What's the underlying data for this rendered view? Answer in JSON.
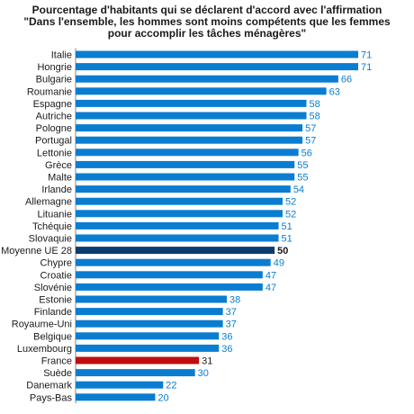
{
  "title_lines": [
    "Pourcentage d'habitants qui se déclarent d'accord avec l'affirmation",
    "\"Dans l'ensemble, les hommes sont moins compétents que les femmes",
    "pour accomplir les tâches ménagères\""
  ],
  "colors": {
    "default": "#0a7dd1",
    "eu_average": "#0d3c6e",
    "france": "#c00d0d",
    "value_default": "#0a7dd1",
    "value_highlight": "#1a1a1a"
  },
  "chart_data": {
    "type": "bar",
    "orientation": "horizontal",
    "title": "Pourcentage d'habitants qui se déclarent d'accord avec l'affirmation \"Dans l'ensemble, les hommes sont moins compétents que les femmes pour accomplir les tâches ménagères\"",
    "categories": [
      "Italie",
      "Hongrie",
      "Bulgarie",
      "Roumanie",
      "Espagne",
      "Autriche",
      "Pologne",
      "Portugal",
      "Lettonie",
      "Grèce",
      "Malte",
      "Irlande",
      "Allemagne",
      "Lituanie",
      "Tchéquie",
      "Slovaquie",
      "Moyenne UE 28",
      "Chypre",
      "Croatie",
      "Slovénie",
      "Estonie",
      "Finlande",
      "Royaume-Uni",
      "Belgique",
      "Luxembourg",
      "France",
      "Suède",
      "Danemark",
      "Pays-Bas"
    ],
    "values": [
      71,
      71,
      66,
      63,
      58,
      58,
      57,
      57,
      56,
      55,
      55,
      54,
      52,
      52,
      51,
      51,
      50,
      49,
      47,
      47,
      38,
      37,
      37,
      36,
      36,
      31,
      30,
      22,
      20
    ],
    "highlights": {
      "Moyenne UE 28": "eu_average",
      "France": "france"
    },
    "xlim": [
      0,
      71
    ],
    "grid": false
  }
}
